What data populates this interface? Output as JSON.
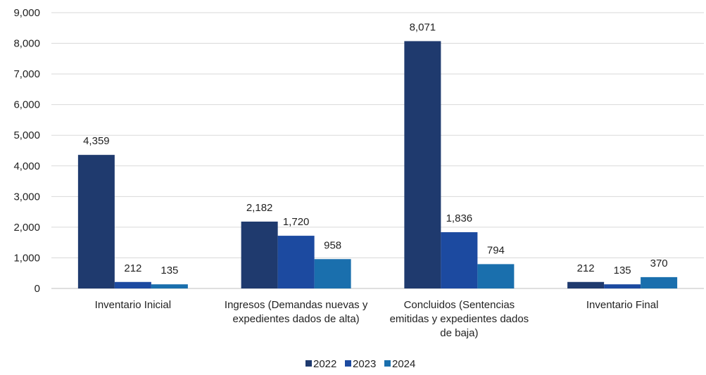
{
  "chart_data": {
    "type": "bar",
    "categories": [
      [
        "Inventario Inicial"
      ],
      [
        "Ingresos (Demandas nuevas y",
        "expedientes dados de alta)"
      ],
      [
        "Concluidos (Sentencias",
        "emitidas y expedientes dados",
        "de baja)"
      ],
      [
        "Inventario Final"
      ]
    ],
    "series": [
      {
        "name": "2022",
        "color": "#1f3a6e",
        "values": [
          4359,
          2182,
          8071,
          212
        ],
        "labels": [
          "4,359",
          "2,182",
          "8,071",
          "212"
        ]
      },
      {
        "name": "2023",
        "color": "#1c4aa0",
        "values": [
          212,
          1720,
          1836,
          135
        ],
        "labels": [
          "212",
          "1,720",
          "1,836",
          "135"
        ]
      },
      {
        "name": "2024",
        "color": "#1a6fad",
        "values": [
          135,
          958,
          794,
          370
        ],
        "labels": [
          "135",
          "958",
          "794",
          "370"
        ]
      }
    ],
    "ylim": [
      0,
      9000
    ],
    "yticks": [
      0,
      1000,
      2000,
      3000,
      4000,
      5000,
      6000,
      7000,
      8000,
      9000
    ],
    "ytick_labels": [
      "0",
      "1,000",
      "2,000",
      "3,000",
      "4,000",
      "5,000",
      "6,000",
      "7,000",
      "8,000",
      "9,000"
    ],
    "grid": true,
    "legend_position": "bottom"
  }
}
